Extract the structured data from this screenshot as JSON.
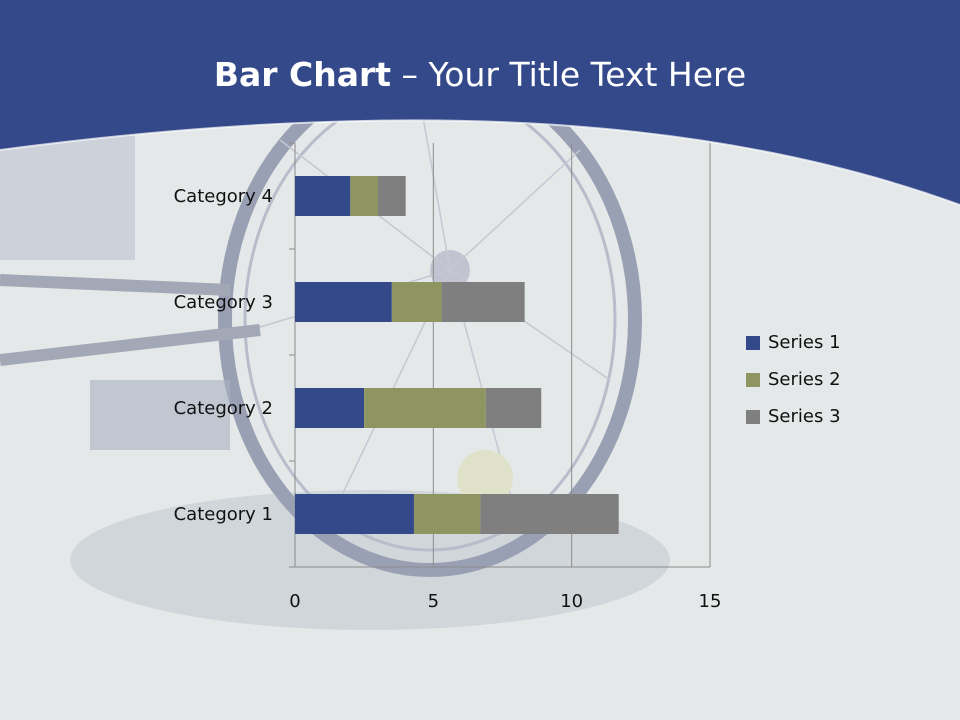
{
  "title": {
    "bold_part": "Bar Chart",
    "regular_part": " – Your Title Text Here"
  },
  "colors": {
    "header": "#34498a",
    "series_1": "#34498a",
    "series_2": "#8f9560",
    "series_3": "#7f7f7f",
    "grid": "#8c8c8c"
  },
  "chart_data": {
    "type": "bar",
    "orientation": "horizontal",
    "stacked": true,
    "categories": [
      "Category 1",
      "Category 2",
      "Category 3",
      "Category 4"
    ],
    "series": [
      {
        "name": "Series 1",
        "values": [
          4.3,
          2.5,
          3.5,
          2.0
        ]
      },
      {
        "name": "Series 2",
        "values": [
          2.4,
          4.4,
          1.8,
          1.0
        ]
      },
      {
        "name": "Series 3",
        "values": [
          5.0,
          2.0,
          3.0,
          1.0
        ]
      }
    ],
    "xlim": [
      0,
      15
    ],
    "xticks": [
      0,
      5,
      10,
      15
    ],
    "grid": true,
    "legend": "right"
  }
}
